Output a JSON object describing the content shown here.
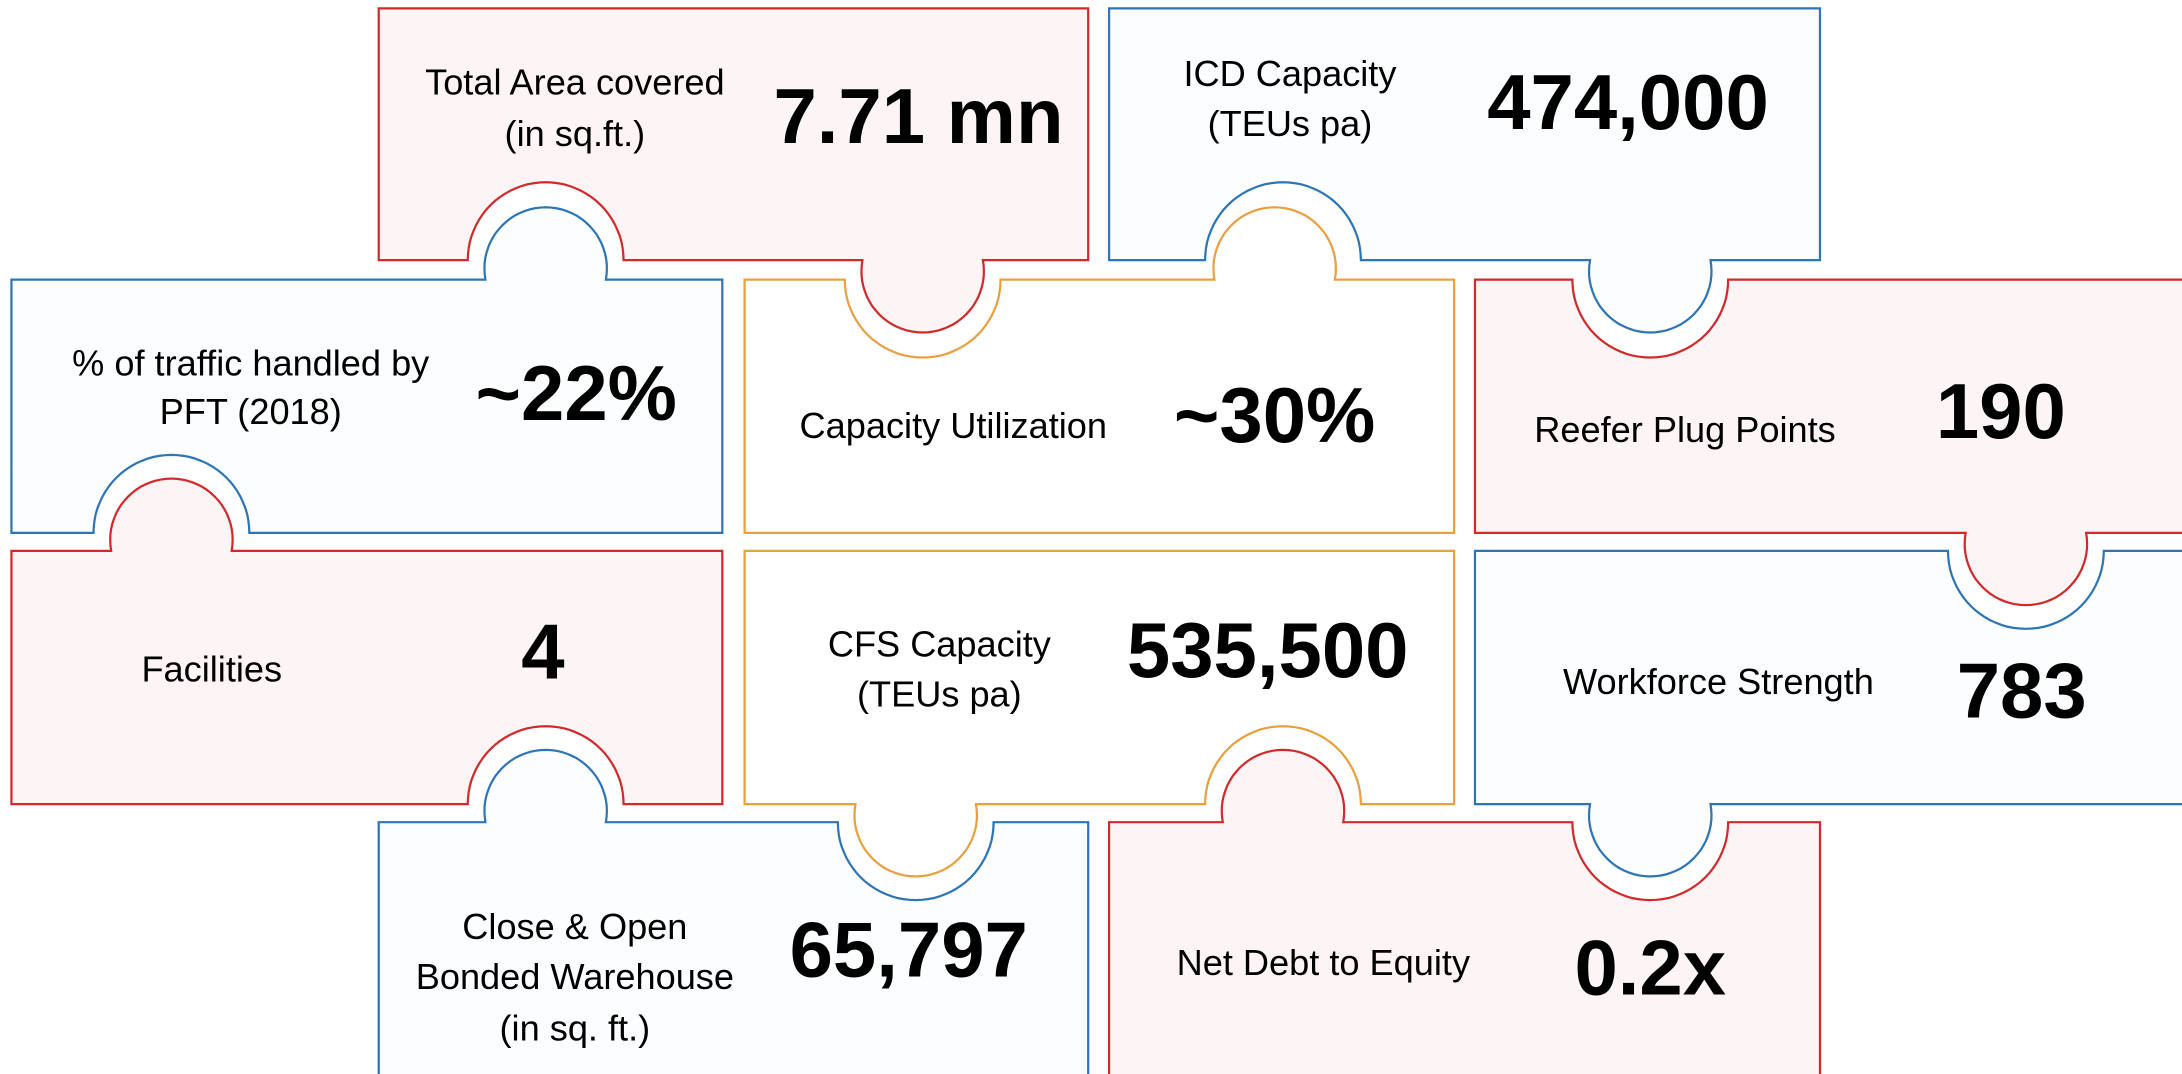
{
  "tiles": [
    {
      "label": [
        "Total Area covered",
        "(in sq.ft.)"
      ],
      "value": "7.71 mn"
    },
    {
      "label": [
        "ICD Capacity",
        "(TEUs pa)"
      ],
      "value": "474,000"
    },
    {
      "label": [
        "% of traffic handled by",
        "PFT (2018)"
      ],
      "value": "~22%"
    },
    {
      "label": [
        "Capacity Utilization"
      ],
      "value": "~30%"
    },
    {
      "label": [
        "Reefer Plug Points"
      ],
      "value": "190"
    },
    {
      "label": [
        "Facilities"
      ],
      "value": "4"
    },
    {
      "label": [
        "CFS Capacity",
        "(TEUs pa)"
      ],
      "value": "535,500"
    },
    {
      "label": [
        "Workforce Strength"
      ],
      "value": "783"
    },
    {
      "label": [
        "Close & Open",
        "Bonded Warehouse",
        "(in sq. ft.)"
      ],
      "value": "65,797"
    },
    {
      "label": [
        "Net Debt to Equity"
      ],
      "value": "0.2x"
    }
  ]
}
